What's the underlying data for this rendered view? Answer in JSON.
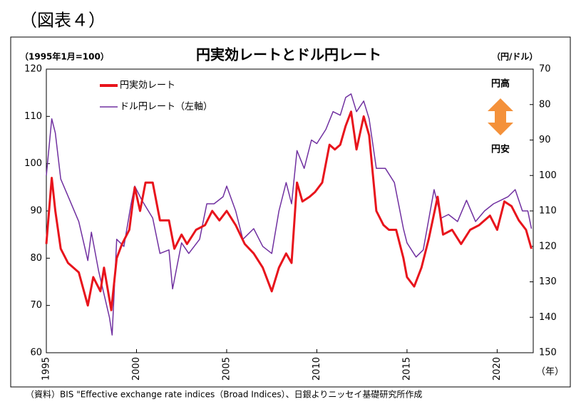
{
  "chart_data": {
    "type": "line",
    "figure_label": "（図表４）",
    "title": "円実効レートとドル円レート",
    "y_label": "（1995年1月=100）",
    "y2_label": "（円/ドル）",
    "x_label": "（年）",
    "annotations": [
      "円高",
      "円安"
    ],
    "source": "（資料）BIS \"Effective exchange rate indices（Broad Indices）、日銀よりニッセイ基礎研究所作成",
    "xlim": [
      1995,
      2022
    ],
    "xticks": [
      1995,
      2000,
      2005,
      2010,
      2015,
      2020
    ],
    "ylim": [
      60,
      120
    ],
    "yticks": [
      60,
      70,
      80,
      90,
      100,
      110,
      120
    ],
    "y2lim": [
      150,
      70
    ],
    "y2ticks": [
      70,
      80,
      90,
      100,
      110,
      120,
      130,
      140,
      150
    ],
    "series": [
      {
        "name": "円実効レート",
        "color": "#e8141c",
        "x": [
          1995.0,
          1995.3,
          1995.5,
          1995.8,
          1996.2,
          1996.8,
          1997.3,
          1997.6,
          1998.0,
          1998.2,
          1998.6,
          1998.9,
          1999.2,
          1999.6,
          1999.9,
          2000.2,
          2000.5,
          2000.9,
          2001.3,
          2001.8,
          2002.1,
          2002.5,
          2002.8,
          2003.3,
          2003.8,
          2004.2,
          2004.6,
          2005.0,
          2005.5,
          2006.0,
          2006.5,
          2007.0,
          2007.5,
          2007.9,
          2008.3,
          2008.6,
          2008.9,
          2009.2,
          2009.6,
          2009.9,
          2010.3,
          2010.7,
          2011.0,
          2011.3,
          2011.6,
          2011.9,
          2012.2,
          2012.6,
          2012.9,
          2013.3,
          2013.7,
          2014.0,
          2014.4,
          2014.8,
          2015.0,
          2015.4,
          2015.8,
          2016.2,
          2016.7,
          2017.0,
          2017.5,
          2018.0,
          2018.5,
          2019.0,
          2019.6,
          2020.0,
          2020.4,
          2020.8,
          2021.2,
          2021.6,
          2021.9
        ],
        "values": [
          83,
          97,
          90,
          82,
          79,
          77,
          70,
          76,
          73,
          78,
          69,
          80,
          83,
          86,
          95,
          90,
          96,
          96,
          88,
          88,
          82,
          85,
          83,
          86,
          87,
          90,
          88,
          90,
          87,
          83,
          81,
          78,
          73,
          78,
          81,
          79,
          96,
          92,
          93,
          94,
          96,
          104,
          103,
          104,
          108,
          111,
          103,
          110,
          106,
          90,
          87,
          86,
          86,
          80,
          76,
          74,
          78,
          84,
          93,
          85,
          86,
          83,
          86,
          87,
          89,
          86,
          92,
          91,
          88,
          86,
          82
        ]
      },
      {
        "name": "ドル円レート（左軸）",
        "color": "#7030a0",
        "axis": "y2",
        "x": [
          1995.0,
          1995.3,
          1995.5,
          1995.8,
          1996.3,
          1996.8,
          1997.3,
          1997.5,
          1997.9,
          1998.5,
          1998.65,
          1998.9,
          1999.3,
          1999.7,
          1999.9,
          2000.3,
          2000.9,
          2001.3,
          2001.8,
          2002.0,
          2002.5,
          2002.9,
          2003.5,
          2003.9,
          2004.3,
          2004.8,
          2005.0,
          2005.5,
          2005.9,
          2006.5,
          2007.0,
          2007.5,
          2007.9,
          2008.3,
          2008.6,
          2008.9,
          2009.3,
          2009.7,
          2010.0,
          2010.5,
          2010.9,
          2011.3,
          2011.6,
          2011.9,
          2012.2,
          2012.6,
          2012.9,
          2013.3,
          2013.8,
          2014.3,
          2014.8,
          2015.0,
          2015.5,
          2015.9,
          2016.5,
          2016.9,
          2017.3,
          2017.8,
          2018.3,
          2018.8,
          2019.3,
          2019.8,
          2020.2,
          2020.6,
          2021.0,
          2021.4,
          2021.7,
          2021.9
        ],
        "values": [
          100,
          84,
          88,
          101,
          107,
          113,
          124,
          116,
          127,
          140,
          145,
          118,
          120,
          108,
          103,
          107,
          112,
          122,
          121,
          132,
          119,
          122,
          118,
          108,
          108,
          106,
          103,
          110,
          118,
          115,
          120,
          122,
          110,
          102,
          108,
          93,
          98,
          90,
          91,
          87,
          82,
          83,
          78,
          77,
          82,
          79,
          84,
          98,
          98,
          102,
          115,
          119,
          123,
          121,
          104,
          112,
          111,
          113,
          107,
          113,
          110,
          108,
          107,
          106,
          104,
          110,
          110,
          115
        ]
      }
    ]
  }
}
